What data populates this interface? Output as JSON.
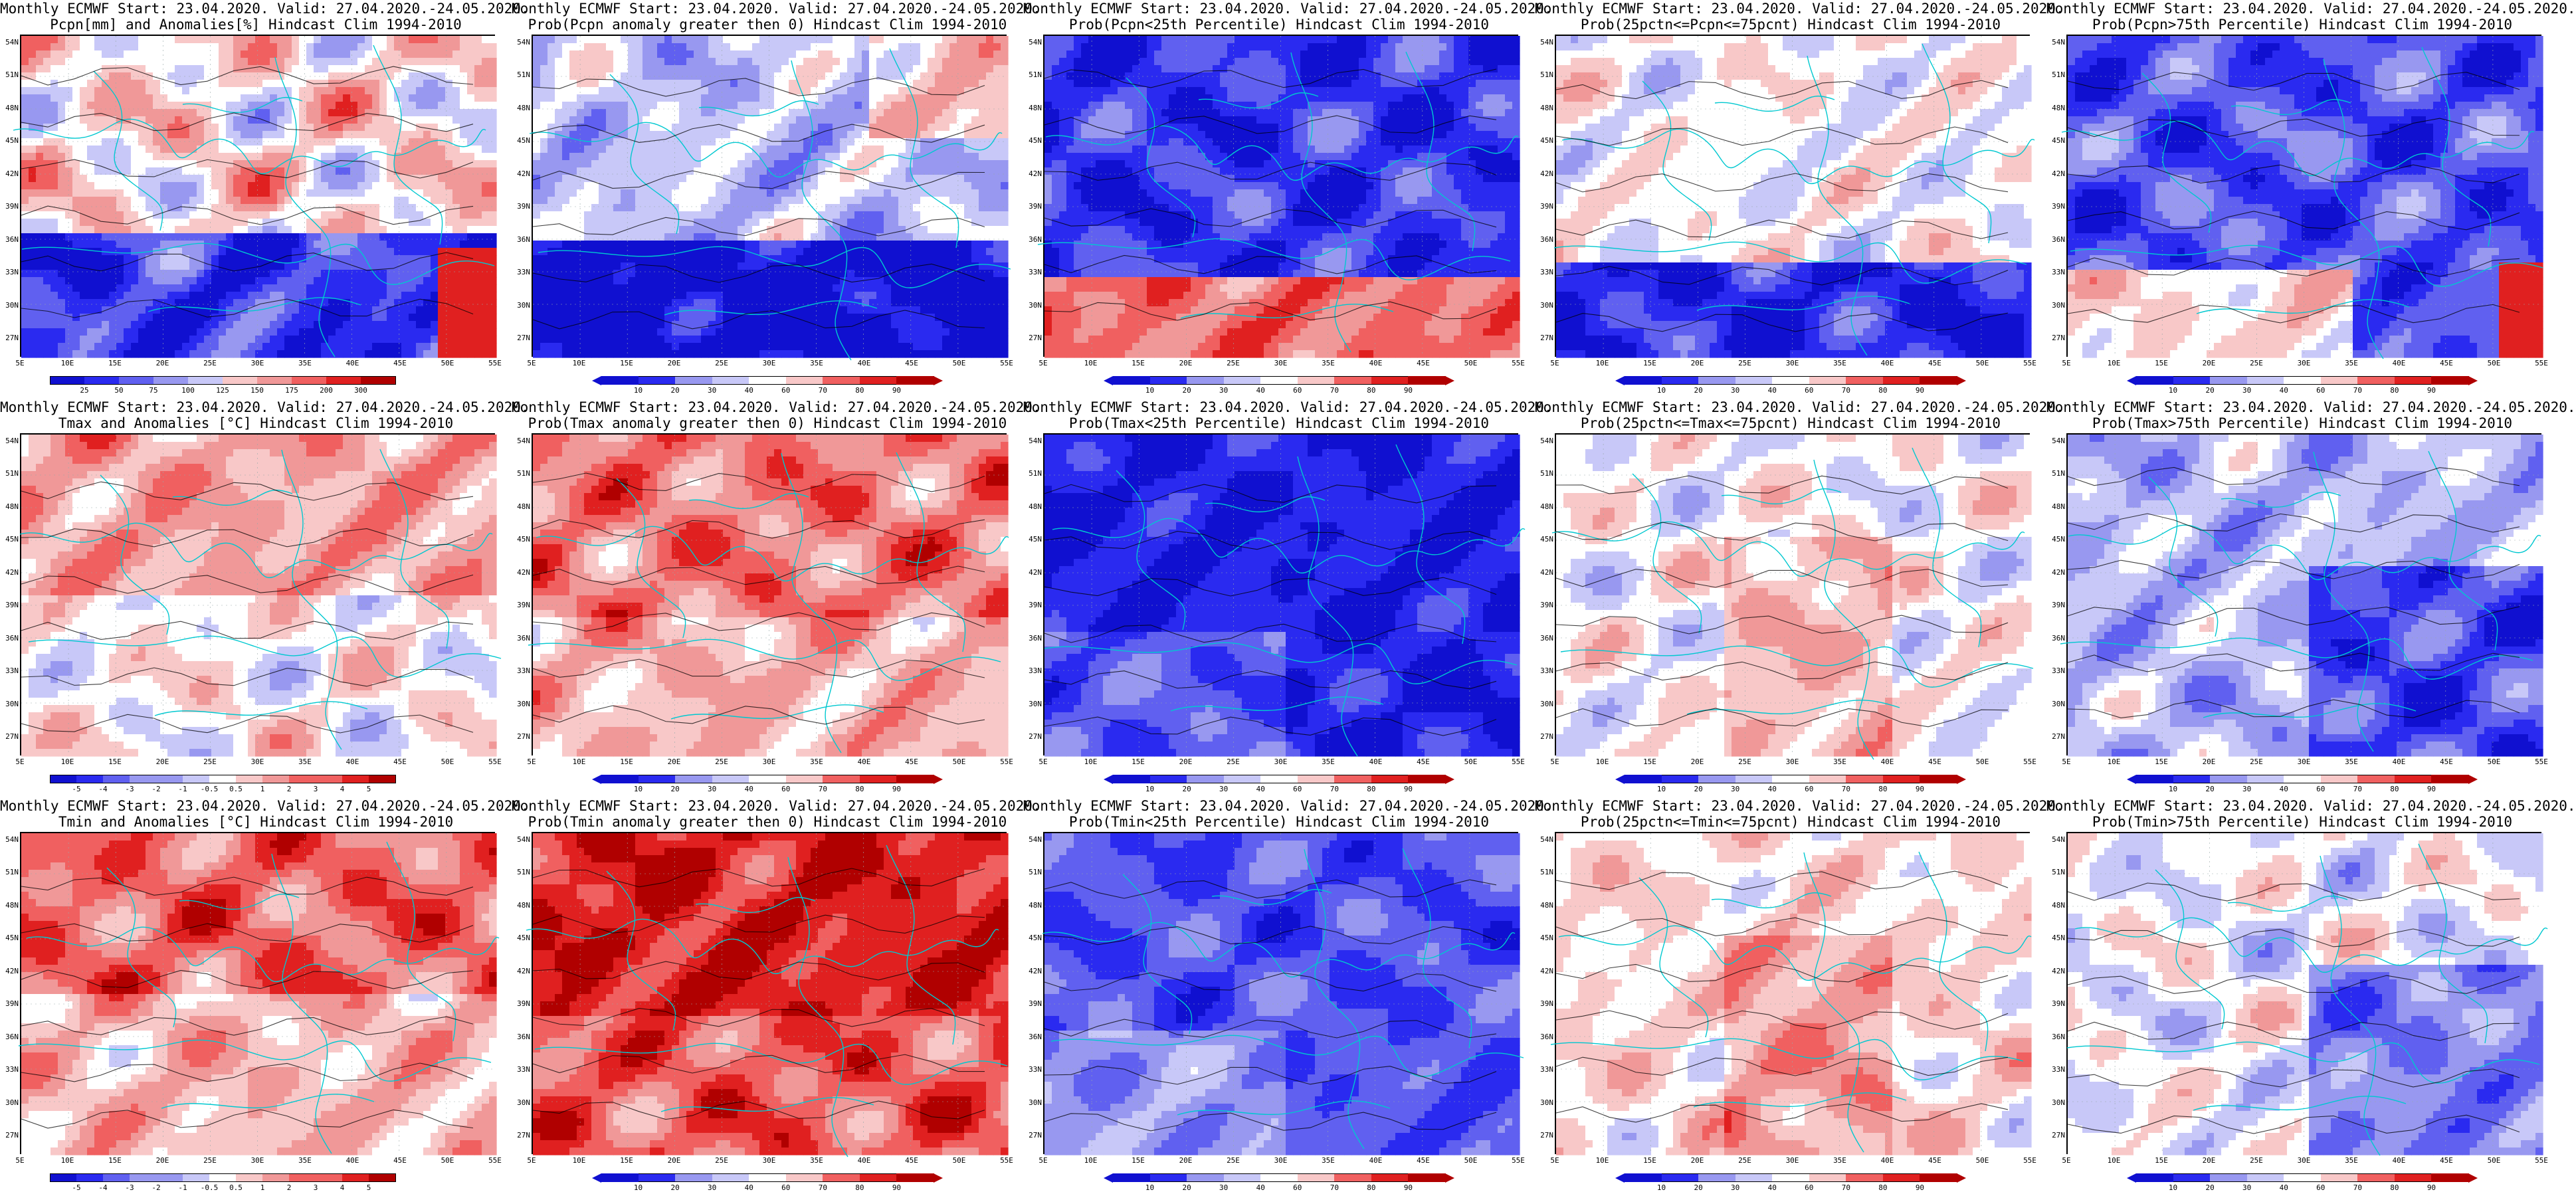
{
  "page": {
    "grid_columns": 5,
    "grid_rows": 3
  },
  "axes": {
    "lat_labels": [
      "54N",
      "51N",
      "48N",
      "45N",
      "42N",
      "39N",
      "36N",
      "33N",
      "30N",
      "27N"
    ],
    "lon_labels": [
      "5E",
      "10E",
      "15E",
      "20E",
      "25E",
      "30E",
      "35E",
      "40E",
      "45E",
      "50E",
      "55E"
    ]
  },
  "colors": {
    "palette_prob": [
      "#1010d0",
      "#2a2af0",
      "#6060f0",
      "#9898f0",
      "#c8c8f8",
      "#ffffff",
      "#f8c8c8",
      "#f09898",
      "#f06060",
      "#e02020",
      "#b00000"
    ],
    "contour_black": "#000000",
    "coast_cyan": "#00c8d0"
  },
  "panels": [
    {
      "id": "pcpn-anom",
      "title1": "Monthly ECMWF Start: 23.04.2020. Valid: 27.04.2020.-24.05.2020.",
      "title2": "Pcpn[mm] and Anomalies[%] Hindcast Clim 1994-2010",
      "scheme": "anom",
      "bias": 0.0,
      "colorbar": {
        "style": "boxes",
        "labels": [
          "25",
          "50",
          "75",
          "100",
          "125",
          "150",
          "175",
          "200",
          "300"
        ]
      }
    },
    {
      "id": "pcpn-prob-pos",
      "title1": "Monthly ECMWF Start: 23.04.2020. Valid: 27.04.2020.-24.05.2020.",
      "title2": "Prob(Pcpn anomaly greater then 0) Hindcast Clim 1994-2010",
      "scheme": "prob-pos",
      "bias": -0.1,
      "colorbar": {
        "style": "arrows",
        "labels": [
          "10",
          "20",
          "30",
          "40",
          "60",
          "70",
          "80",
          "90"
        ]
      }
    },
    {
      "id": "pcpn-prob-lt25",
      "title1": "Monthly ECMWF Start: 23.04.2020. Valid: 27.04.2020.-24.05.2020.",
      "title2": "Prob(Pcpn<25th Percentile) Hindcast Clim 1994-2010",
      "scheme": "low",
      "bias": 0.0,
      "colorbar": {
        "style": "arrows",
        "labels": [
          "10",
          "20",
          "30",
          "40",
          "60",
          "70",
          "80",
          "90"
        ]
      }
    },
    {
      "id": "pcpn-prob-mid",
      "title1": "Monthly ECMWF Start: 23.04.2020. Valid: 27.04.2020.-24.05.2020.",
      "title2": "Prob(25pctn<=Pcpn<=75pcnt) Hindcast Clim 1994-2010",
      "scheme": "mid",
      "bias": 0.0,
      "colorbar": {
        "style": "arrows",
        "labels": [
          "10",
          "20",
          "30",
          "40",
          "60",
          "70",
          "80",
          "90"
        ]
      }
    },
    {
      "id": "pcpn-prob-gt75",
      "title1": "Monthly ECMWF Start: 23.04.2020. Valid: 27.04.2020.-24.05.2020.",
      "title2": "Prob(Pcpn>75th Percentile) Hindcast Clim 1994-2010",
      "scheme": "high",
      "bias": 0.0,
      "colorbar": {
        "style": "arrows",
        "labels": [
          "10",
          "20",
          "30",
          "40",
          "60",
          "70",
          "80",
          "90"
        ]
      }
    },
    {
      "id": "tmax-anom",
      "title1": "Monthly ECMWF Start: 23.04.2020. Valid: 27.04.2020.-24.05.2020.",
      "title2": "Tmax and Anomalies [°C] Hindcast Clim 1994-2010",
      "scheme": "warm-anom",
      "bias": 0.0,
      "colorbar": {
        "style": "boxes",
        "labels": [
          "-5",
          "-4",
          "-3",
          "-2",
          "-1",
          "-0.5",
          "0.5",
          "1",
          "2",
          "3",
          "4",
          "5"
        ]
      }
    },
    {
      "id": "tmax-prob-pos",
      "title1": "Monthly ECMWF Start: 23.04.2020. Valid: 27.04.2020.-24.05.2020.",
      "title2": "Prob(Tmax anomaly greater then 0) Hindcast Clim 1994-2010",
      "scheme": "warm",
      "bias": 0.0,
      "colorbar": {
        "style": "arrows",
        "labels": [
          "10",
          "20",
          "30",
          "40",
          "60",
          "70",
          "80",
          "90"
        ]
      }
    },
    {
      "id": "tmax-prob-lt25",
      "title1": "Monthly ECMWF Start: 23.04.2020. Valid: 27.04.2020.-24.05.2020.",
      "title2": "Prob(Tmax<25th Percentile) Hindcast Clim 1994-2010",
      "scheme": "cold",
      "bias": 0.0,
      "colorbar": {
        "style": "arrows",
        "labels": [
          "10",
          "20",
          "30",
          "40",
          "60",
          "70",
          "80",
          "90"
        ]
      }
    },
    {
      "id": "tmax-prob-mid",
      "title1": "Monthly ECMWF Start: 23.04.2020. Valid: 27.04.2020.-24.05.2020.",
      "title2": "Prob(25pctn<=Tmax<=75pcnt) Hindcast Clim 1994-2010",
      "scheme": "mid-warm",
      "bias": 0.0,
      "colorbar": {
        "style": "arrows",
        "labels": [
          "10",
          "20",
          "30",
          "40",
          "60",
          "70",
          "80",
          "90"
        ]
      }
    },
    {
      "id": "tmax-prob-gt75",
      "title1": "Monthly ECMWF Start: 23.04.2020. Valid: 27.04.2020.-24.05.2020.",
      "title2": "Prob(Tmax>75th Percentile) Hindcast Clim 1994-2010",
      "scheme": "high2",
      "bias": 0.0,
      "colorbar": {
        "style": "arrows",
        "labels": [
          "10",
          "20",
          "30",
          "40",
          "60",
          "70",
          "80",
          "90"
        ]
      }
    },
    {
      "id": "tmin-anom",
      "title1": "Monthly ECMWF Start: 23.04.2020. Valid: 27.04.2020.-24.05.2020.",
      "title2": "Tmin and Anomalies [°C] Hindcast Clim 1994-2010",
      "scheme": "warm-anom",
      "bias": 0.1,
      "colorbar": {
        "style": "boxes",
        "labels": [
          "-5",
          "-4",
          "-3",
          "-2",
          "-1",
          "-0.5",
          "0.5",
          "1",
          "2",
          "3",
          "4",
          "5"
        ]
      }
    },
    {
      "id": "tmin-prob-pos",
      "title1": "Monthly ECMWF Start: 23.04.2020. Valid: 27.04.2020.-24.05.2020.",
      "title2": "Prob(Tmin anomaly greater then 0) Hindcast Clim 1994-2010",
      "scheme": "warm",
      "bias": 0.15,
      "colorbar": {
        "style": "arrows",
        "labels": [
          "10",
          "20",
          "30",
          "40",
          "60",
          "70",
          "80",
          "90"
        ]
      }
    },
    {
      "id": "tmin-prob-lt25",
      "title1": "Monthly ECMWF Start: 23.04.2020. Valid: 27.04.2020.-24.05.2020.",
      "title2": "Prob(Tmin<25th Percentile) Hindcast Clim 1994-2010",
      "scheme": "cold",
      "bias": 0.1,
      "colorbar": {
        "style": "arrows",
        "labels": [
          "10",
          "20",
          "30",
          "40",
          "60",
          "70",
          "80",
          "90"
        ]
      }
    },
    {
      "id": "tmin-prob-mid",
      "title1": "Monthly ECMWF Start: 23.04.2020. Valid: 27.04.2020.-24.05.2020.",
      "title2": "Prob(25pctn<=Tmin<=75pcnt) Hindcast Clim 1994-2010",
      "scheme": "mid-warm",
      "bias": 0.05,
      "colorbar": {
        "style": "arrows",
        "labels": [
          "10",
          "20",
          "30",
          "40",
          "60",
          "70",
          "80",
          "90"
        ]
      }
    },
    {
      "id": "tmin-prob-gt75",
      "title1": "Monthly ECMWF Start: 23.04.2020. Valid: 27.04.2020.-24.05.2020.",
      "title2": "Prob(Tmin>75th Percentile) Hindcast Clim 1994-2010",
      "scheme": "high2",
      "bias": 0.1,
      "colorbar": {
        "style": "arrows",
        "labels": [
          "10",
          "20",
          "30",
          "40",
          "60",
          "70",
          "80",
          "90"
        ]
      }
    }
  ]
}
